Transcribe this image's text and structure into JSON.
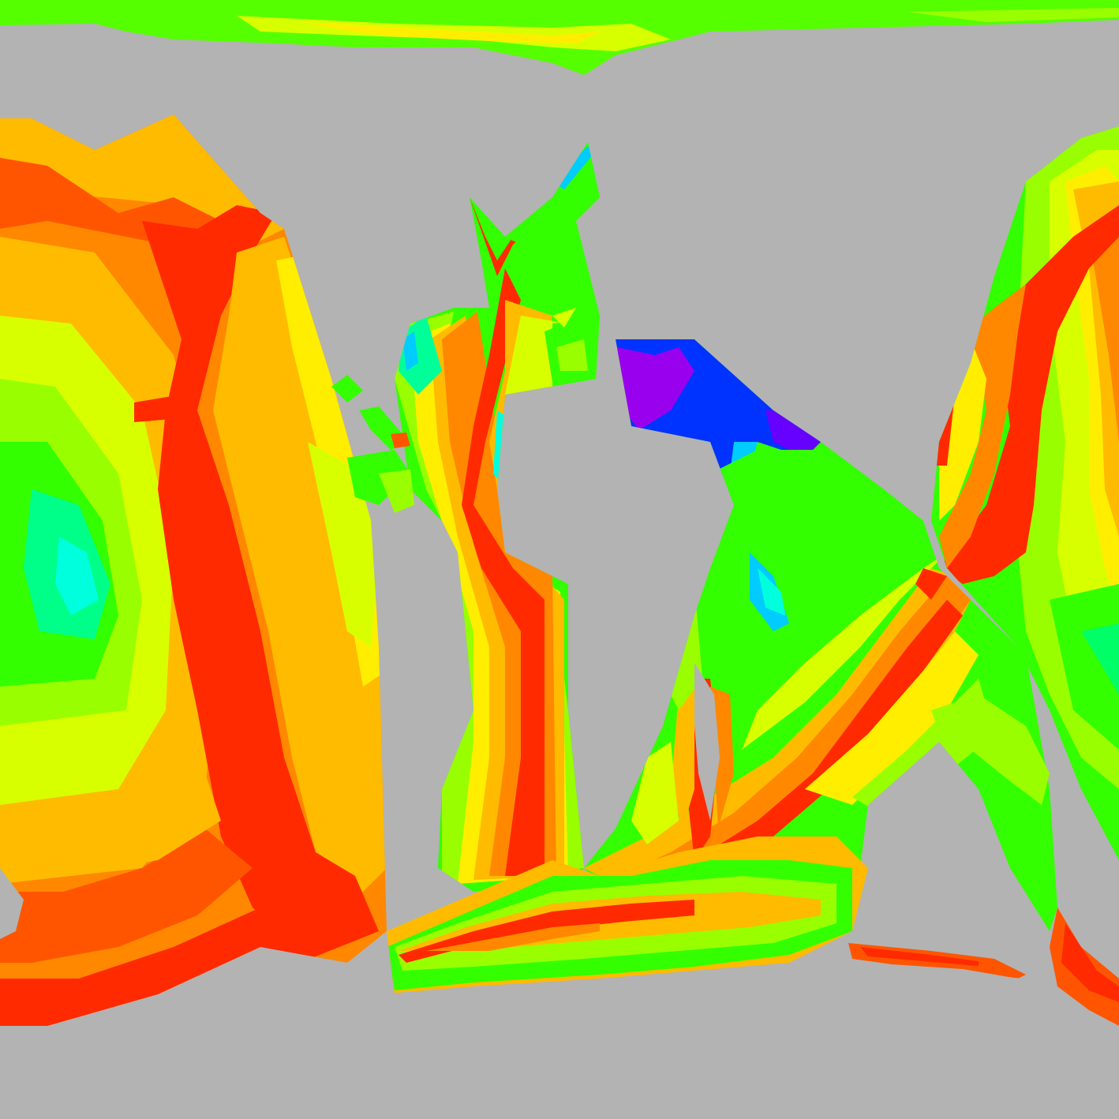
{
  "map": {
    "type": "seafloor-age-raster",
    "projection": "equirectangular",
    "background_color": "#b3b3b3",
    "continents_color": "#b3b3b3",
    "palette": {
      "red": "#ff2a00",
      "orange_red": "#ff5500",
      "orange": "#ff8800",
      "yellow_orange": "#ffbb00",
      "yellow": "#ffee00",
      "yellow_green": "#d8ff00",
      "lime": "#99ff00",
      "green": "#33ff00",
      "spring_green": "#00ff66",
      "cyan": "#00ffdd",
      "sky": "#00ccff",
      "blue": "#0033ff",
      "violet": "#6600ff",
      "purple": "#9900ee"
    }
  }
}
